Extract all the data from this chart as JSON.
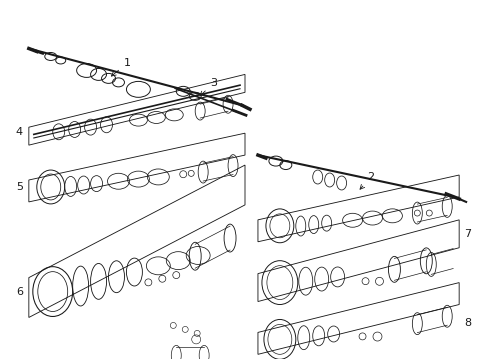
{
  "background_color": "#ffffff",
  "line_color": "#1a1a1a",
  "fig_w": 4.89,
  "fig_h": 3.6,
  "dpi": 100
}
